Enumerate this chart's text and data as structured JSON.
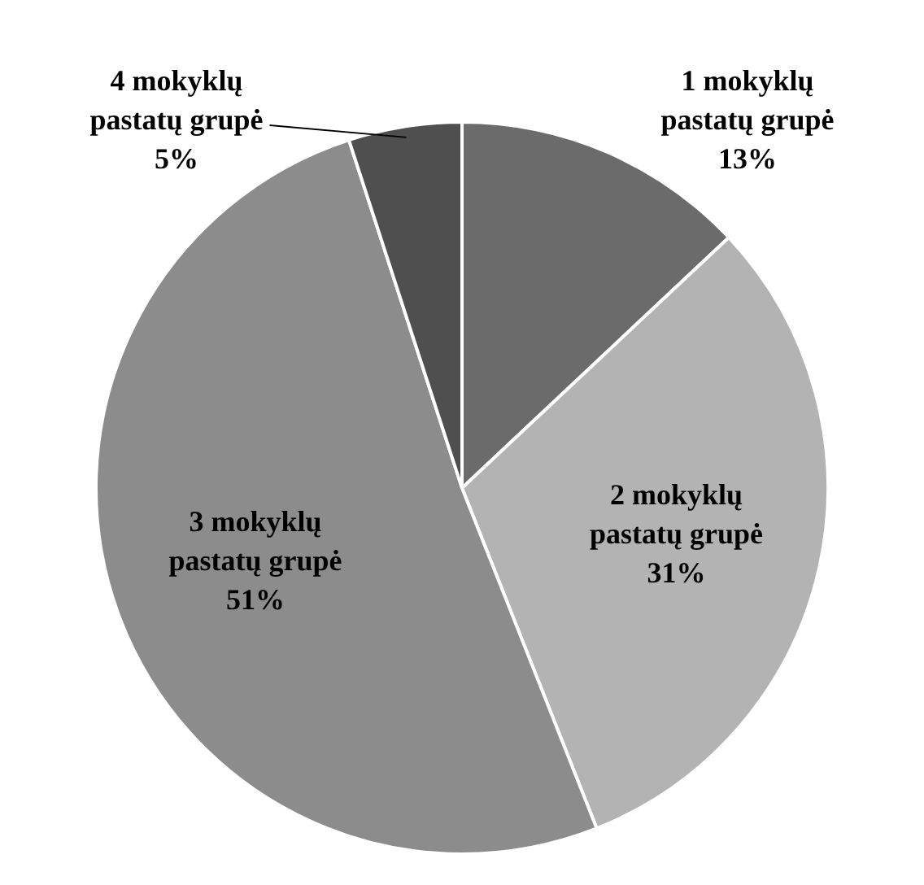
{
  "chart_data": {
    "type": "pie",
    "categories": [
      "1 mokyklų pastatų grupė",
      "2 mokyklų pastatų grupė",
      "3 mokyklų pastatų grupė",
      "4 mokyklų pastatų grupė"
    ],
    "values": [
      13,
      31,
      51,
      5
    ],
    "colors": [
      "#6b6b6b",
      "#b3b3b3",
      "#8c8c8c",
      "#4f4f4f"
    ],
    "value_labels": [
      "13%",
      "31%",
      "51%",
      "5%"
    ],
    "legend": false
  }
}
